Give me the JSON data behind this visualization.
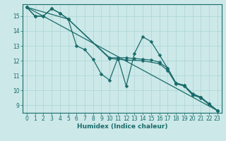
{
  "xlabel": "Humidex (Indice chaleur)",
  "bg_color": "#cce8e8",
  "line_color": "#1a6b6b",
  "grid_color": "#aad4d4",
  "xlim": [
    -0.5,
    23.5
  ],
  "ylim": [
    8.5,
    15.8
  ],
  "xticks": [
    0,
    1,
    2,
    3,
    4,
    5,
    6,
    7,
    8,
    9,
    10,
    11,
    12,
    13,
    14,
    15,
    16,
    17,
    18,
    19,
    20,
    21,
    22,
    23
  ],
  "yticks": [
    9,
    10,
    11,
    12,
    13,
    14,
    15
  ],
  "series": [
    {
      "x": [
        0,
        1,
        2,
        3,
        4,
        5,
        6,
        7,
        8,
        9,
        10,
        11,
        12,
        13,
        14,
        15,
        16,
        17,
        18,
        19,
        20,
        21,
        22,
        23
      ],
      "y": [
        15.6,
        15.0,
        15.0,
        15.5,
        15.2,
        14.8,
        13.0,
        12.75,
        12.1,
        11.1,
        10.7,
        12.2,
        10.3,
        12.5,
        13.6,
        13.3,
        12.4,
        11.5,
        10.5,
        10.35,
        9.8,
        9.55,
        9.1,
        8.65
      ]
    },
    {
      "x": [
        0,
        1,
        2,
        3,
        4,
        5,
        10,
        11,
        12,
        13,
        14,
        15,
        16,
        17,
        18,
        19,
        20,
        21,
        22,
        23
      ],
      "y": [
        15.6,
        15.0,
        15.0,
        15.5,
        15.2,
        14.8,
        12.2,
        12.2,
        12.2,
        12.15,
        12.1,
        12.05,
        11.9,
        11.5,
        10.5,
        10.35,
        9.75,
        9.55,
        9.1,
        8.65
      ]
    },
    {
      "x": [
        0,
        23
      ],
      "y": [
        15.6,
        8.65
      ]
    },
    {
      "x": [
        0,
        5,
        10,
        11,
        12,
        14,
        16,
        17,
        18,
        19,
        20,
        21,
        22,
        23
      ],
      "y": [
        15.6,
        14.8,
        12.15,
        12.1,
        12.05,
        12.0,
        11.8,
        11.35,
        10.45,
        10.3,
        9.7,
        9.5,
        9.05,
        8.65
      ]
    }
  ]
}
